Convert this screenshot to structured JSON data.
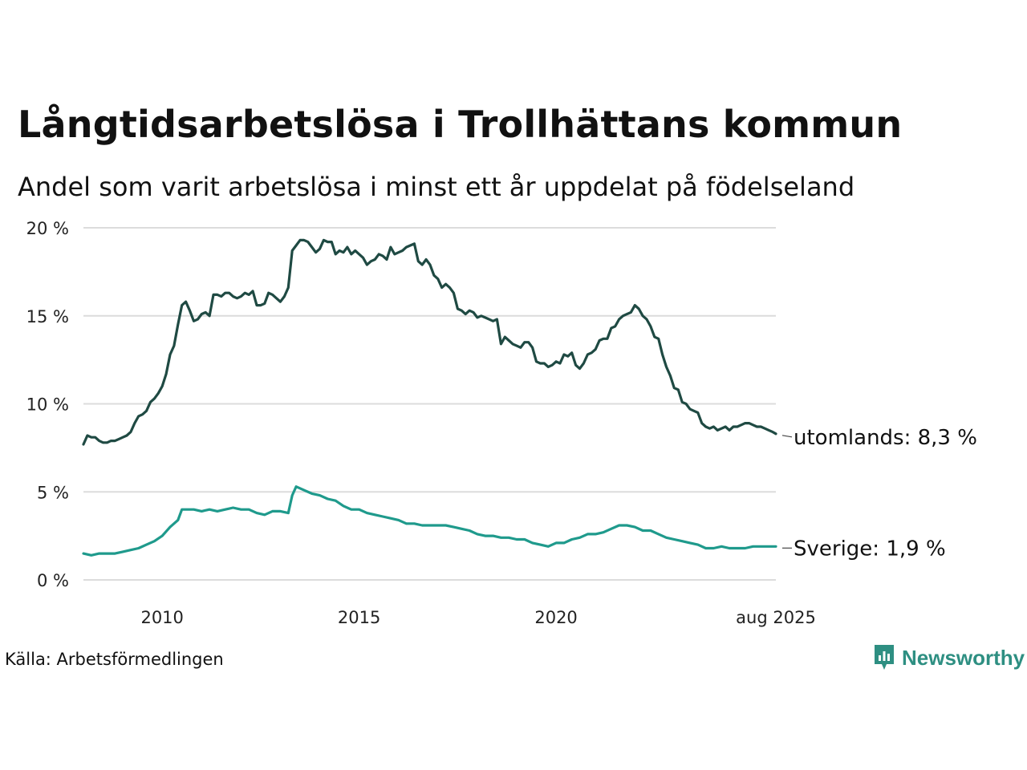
{
  "title": "Långtidsarbetslösa i Trollhättans kommun",
  "subtitle": "Andel som varit arbetslösa i minst ett år uppdelat på födelseland",
  "source": "Källa: Arbetsförmedlingen",
  "brand": {
    "name": "Newsworthy",
    "icon": "newsworthy-logo-icon",
    "color": "#2e8f82"
  },
  "chart_data": {
    "type": "line",
    "title": "Långtidsarbetslösa i Trollhättans kommun",
    "subtitle": "Andel som varit arbetslösa i minst ett år uppdelat på födelseland",
    "xlabel": "",
    "ylabel": "",
    "ylim": [
      0,
      20
    ],
    "xlim": [
      2008.0,
      2025.58
    ],
    "y_ticks": [
      0,
      5,
      10,
      15,
      20
    ],
    "y_tick_labels": [
      "0 %",
      "5 %",
      "10 %",
      "15 %",
      "20 %"
    ],
    "x_ticks": [
      2010,
      2015,
      2020,
      2025.58
    ],
    "x_tick_labels": [
      "2010",
      "2015",
      "2020",
      "aug 2025"
    ],
    "grid": "horizontal",
    "legend": "end-of-line labels",
    "series": [
      {
        "name": "utomlands",
        "end_label": "utomlands: 8,3 %",
        "color": "#1f4a43",
        "points": [
          [
            2008.0,
            7.7
          ],
          [
            2008.1,
            8.2
          ],
          [
            2008.2,
            8.1
          ],
          [
            2008.3,
            8.1
          ],
          [
            2008.4,
            7.9
          ],
          [
            2008.5,
            7.8
          ],
          [
            2008.6,
            7.8
          ],
          [
            2008.7,
            7.9
          ],
          [
            2008.8,
            7.9
          ],
          [
            2008.9,
            8.0
          ],
          [
            2009.0,
            8.1
          ],
          [
            2009.1,
            8.2
          ],
          [
            2009.2,
            8.4
          ],
          [
            2009.3,
            8.9
          ],
          [
            2009.4,
            9.3
          ],
          [
            2009.5,
            9.4
          ],
          [
            2009.6,
            9.6
          ],
          [
            2009.7,
            10.1
          ],
          [
            2009.8,
            10.3
          ],
          [
            2009.9,
            10.6
          ],
          [
            2010.0,
            11.0
          ],
          [
            2010.1,
            11.7
          ],
          [
            2010.2,
            12.8
          ],
          [
            2010.3,
            13.3
          ],
          [
            2010.4,
            14.5
          ],
          [
            2010.5,
            15.6
          ],
          [
            2010.6,
            15.8
          ],
          [
            2010.7,
            15.3
          ],
          [
            2010.8,
            14.7
          ],
          [
            2010.9,
            14.8
          ],
          [
            2011.0,
            15.1
          ],
          [
            2011.1,
            15.2
          ],
          [
            2011.2,
            15.0
          ],
          [
            2011.3,
            16.2
          ],
          [
            2011.4,
            16.2
          ],
          [
            2011.5,
            16.1
          ],
          [
            2011.6,
            16.3
          ],
          [
            2011.7,
            16.3
          ],
          [
            2011.8,
            16.1
          ],
          [
            2011.9,
            16.0
          ],
          [
            2012.0,
            16.1
          ],
          [
            2012.1,
            16.3
          ],
          [
            2012.2,
            16.2
          ],
          [
            2012.3,
            16.4
          ],
          [
            2012.4,
            15.6
          ],
          [
            2012.5,
            15.6
          ],
          [
            2012.6,
            15.7
          ],
          [
            2012.7,
            16.3
          ],
          [
            2012.8,
            16.2
          ],
          [
            2012.9,
            16.0
          ],
          [
            2013.0,
            15.8
          ],
          [
            2013.1,
            16.1
          ],
          [
            2013.2,
            16.6
          ],
          [
            2013.3,
            18.7
          ],
          [
            2013.4,
            19.0
          ],
          [
            2013.5,
            19.3
          ],
          [
            2013.6,
            19.3
          ],
          [
            2013.7,
            19.2
          ],
          [
            2013.8,
            18.9
          ],
          [
            2013.9,
            18.6
          ],
          [
            2014.0,
            18.8
          ],
          [
            2014.1,
            19.3
          ],
          [
            2014.2,
            19.2
          ],
          [
            2014.3,
            19.2
          ],
          [
            2014.4,
            18.5
          ],
          [
            2014.5,
            18.7
          ],
          [
            2014.6,
            18.6
          ],
          [
            2014.7,
            18.9
          ],
          [
            2014.8,
            18.5
          ],
          [
            2014.9,
            18.7
          ],
          [
            2015.0,
            18.5
          ],
          [
            2015.1,
            18.3
          ],
          [
            2015.2,
            17.9
          ],
          [
            2015.3,
            18.1
          ],
          [
            2015.4,
            18.2
          ],
          [
            2015.5,
            18.5
          ],
          [
            2015.6,
            18.4
          ],
          [
            2015.7,
            18.2
          ],
          [
            2015.8,
            18.9
          ],
          [
            2015.9,
            18.5
          ],
          [
            2016.0,
            18.6
          ],
          [
            2016.1,
            18.7
          ],
          [
            2016.2,
            18.9
          ],
          [
            2016.3,
            19.0
          ],
          [
            2016.4,
            19.1
          ],
          [
            2016.5,
            18.1
          ],
          [
            2016.6,
            17.9
          ],
          [
            2016.7,
            18.2
          ],
          [
            2016.8,
            17.9
          ],
          [
            2016.9,
            17.3
          ],
          [
            2017.0,
            17.1
          ],
          [
            2017.1,
            16.6
          ],
          [
            2017.2,
            16.8
          ],
          [
            2017.3,
            16.6
          ],
          [
            2017.4,
            16.3
          ],
          [
            2017.5,
            15.4
          ],
          [
            2017.6,
            15.3
          ],
          [
            2017.7,
            15.1
          ],
          [
            2017.8,
            15.3
          ],
          [
            2017.9,
            15.2
          ],
          [
            2018.0,
            14.9
          ],
          [
            2018.1,
            15.0
          ],
          [
            2018.2,
            14.9
          ],
          [
            2018.3,
            14.8
          ],
          [
            2018.4,
            14.7
          ],
          [
            2018.5,
            14.8
          ],
          [
            2018.6,
            13.4
          ],
          [
            2018.7,
            13.8
          ],
          [
            2018.8,
            13.6
          ],
          [
            2018.9,
            13.4
          ],
          [
            2019.0,
            13.3
          ],
          [
            2019.1,
            13.2
          ],
          [
            2019.2,
            13.5
          ],
          [
            2019.3,
            13.5
          ],
          [
            2019.4,
            13.2
          ],
          [
            2019.5,
            12.4
          ],
          [
            2019.6,
            12.3
          ],
          [
            2019.7,
            12.3
          ],
          [
            2019.8,
            12.1
          ],
          [
            2019.9,
            12.2
          ],
          [
            2020.0,
            12.4
          ],
          [
            2020.1,
            12.3
          ],
          [
            2020.2,
            12.8
          ],
          [
            2020.3,
            12.7
          ],
          [
            2020.4,
            12.9
          ],
          [
            2020.5,
            12.2
          ],
          [
            2020.6,
            12.0
          ],
          [
            2020.7,
            12.3
          ],
          [
            2020.8,
            12.8
          ],
          [
            2020.9,
            12.9
          ],
          [
            2021.0,
            13.1
          ],
          [
            2021.1,
            13.6
          ],
          [
            2021.2,
            13.7
          ],
          [
            2021.3,
            13.7
          ],
          [
            2021.4,
            14.3
          ],
          [
            2021.5,
            14.4
          ],
          [
            2021.6,
            14.8
          ],
          [
            2021.7,
            15.0
          ],
          [
            2021.8,
            15.1
          ],
          [
            2021.9,
            15.2
          ],
          [
            2022.0,
            15.6
          ],
          [
            2022.1,
            15.4
          ],
          [
            2022.2,
            15.0
          ],
          [
            2022.3,
            14.8
          ],
          [
            2022.4,
            14.4
          ],
          [
            2022.5,
            13.8
          ],
          [
            2022.6,
            13.7
          ],
          [
            2022.7,
            12.8
          ],
          [
            2022.8,
            12.1
          ],
          [
            2022.9,
            11.6
          ],
          [
            2023.0,
            10.9
          ],
          [
            2023.1,
            10.8
          ],
          [
            2023.2,
            10.1
          ],
          [
            2023.3,
            10.0
          ],
          [
            2023.4,
            9.7
          ],
          [
            2023.5,
            9.6
          ],
          [
            2023.6,
            9.5
          ],
          [
            2023.7,
            8.9
          ],
          [
            2023.8,
            8.7
          ],
          [
            2023.9,
            8.6
          ],
          [
            2024.0,
            8.7
          ],
          [
            2024.1,
            8.5
          ],
          [
            2024.2,
            8.6
          ],
          [
            2024.3,
            8.7
          ],
          [
            2024.4,
            8.5
          ],
          [
            2024.5,
            8.7
          ],
          [
            2024.6,
            8.7
          ],
          [
            2024.7,
            8.8
          ],
          [
            2024.8,
            8.9
          ],
          [
            2024.9,
            8.9
          ],
          [
            2025.0,
            8.8
          ],
          [
            2025.1,
            8.7
          ],
          [
            2025.2,
            8.7
          ],
          [
            2025.3,
            8.6
          ],
          [
            2025.4,
            8.5
          ],
          [
            2025.5,
            8.4
          ],
          [
            2025.58,
            8.3
          ]
        ]
      },
      {
        "name": "Sverige",
        "end_label": "Sverige: 1,9 %",
        "color": "#1f9a8c",
        "points": [
          [
            2008.0,
            1.5
          ],
          [
            2008.2,
            1.4
          ],
          [
            2008.4,
            1.5
          ],
          [
            2008.6,
            1.5
          ],
          [
            2008.8,
            1.5
          ],
          [
            2009.0,
            1.6
          ],
          [
            2009.2,
            1.7
          ],
          [
            2009.4,
            1.8
          ],
          [
            2009.6,
            2.0
          ],
          [
            2009.8,
            2.2
          ],
          [
            2010.0,
            2.5
          ],
          [
            2010.2,
            3.0
          ],
          [
            2010.4,
            3.4
          ],
          [
            2010.5,
            4.0
          ],
          [
            2010.6,
            4.0
          ],
          [
            2010.8,
            4.0
          ],
          [
            2011.0,
            3.9
          ],
          [
            2011.2,
            4.0
          ],
          [
            2011.4,
            3.9
          ],
          [
            2011.6,
            4.0
          ],
          [
            2011.8,
            4.1
          ],
          [
            2012.0,
            4.0
          ],
          [
            2012.2,
            4.0
          ],
          [
            2012.4,
            3.8
          ],
          [
            2012.6,
            3.7
          ],
          [
            2012.8,
            3.9
          ],
          [
            2013.0,
            3.9
          ],
          [
            2013.2,
            3.8
          ],
          [
            2013.3,
            4.8
          ],
          [
            2013.4,
            5.3
          ],
          [
            2013.6,
            5.1
          ],
          [
            2013.8,
            4.9
          ],
          [
            2014.0,
            4.8
          ],
          [
            2014.2,
            4.6
          ],
          [
            2014.4,
            4.5
          ],
          [
            2014.6,
            4.2
          ],
          [
            2014.8,
            4.0
          ],
          [
            2015.0,
            4.0
          ],
          [
            2015.2,
            3.8
          ],
          [
            2015.4,
            3.7
          ],
          [
            2015.6,
            3.6
          ],
          [
            2015.8,
            3.5
          ],
          [
            2016.0,
            3.4
          ],
          [
            2016.2,
            3.2
          ],
          [
            2016.4,
            3.2
          ],
          [
            2016.6,
            3.1
          ],
          [
            2016.8,
            3.1
          ],
          [
            2017.0,
            3.1
          ],
          [
            2017.2,
            3.1
          ],
          [
            2017.4,
            3.0
          ],
          [
            2017.6,
            2.9
          ],
          [
            2017.8,
            2.8
          ],
          [
            2018.0,
            2.6
          ],
          [
            2018.2,
            2.5
          ],
          [
            2018.4,
            2.5
          ],
          [
            2018.6,
            2.4
          ],
          [
            2018.8,
            2.4
          ],
          [
            2019.0,
            2.3
          ],
          [
            2019.2,
            2.3
          ],
          [
            2019.4,
            2.1
          ],
          [
            2019.6,
            2.0
          ],
          [
            2019.8,
            1.9
          ],
          [
            2020.0,
            2.1
          ],
          [
            2020.2,
            2.1
          ],
          [
            2020.4,
            2.3
          ],
          [
            2020.6,
            2.4
          ],
          [
            2020.8,
            2.6
          ],
          [
            2021.0,
            2.6
          ],
          [
            2021.2,
            2.7
          ],
          [
            2021.4,
            2.9
          ],
          [
            2021.6,
            3.1
          ],
          [
            2021.8,
            3.1
          ],
          [
            2022.0,
            3.0
          ],
          [
            2022.2,
            2.8
          ],
          [
            2022.4,
            2.8
          ],
          [
            2022.6,
            2.6
          ],
          [
            2022.8,
            2.4
          ],
          [
            2023.0,
            2.3
          ],
          [
            2023.2,
            2.2
          ],
          [
            2023.4,
            2.1
          ],
          [
            2023.6,
            2.0
          ],
          [
            2023.8,
            1.8
          ],
          [
            2024.0,
            1.8
          ],
          [
            2024.2,
            1.9
          ],
          [
            2024.4,
            1.8
          ],
          [
            2024.6,
            1.8
          ],
          [
            2024.8,
            1.8
          ],
          [
            2025.0,
            1.9
          ],
          [
            2025.2,
            1.9
          ],
          [
            2025.4,
            1.9
          ],
          [
            2025.58,
            1.9
          ]
        ]
      }
    ]
  }
}
